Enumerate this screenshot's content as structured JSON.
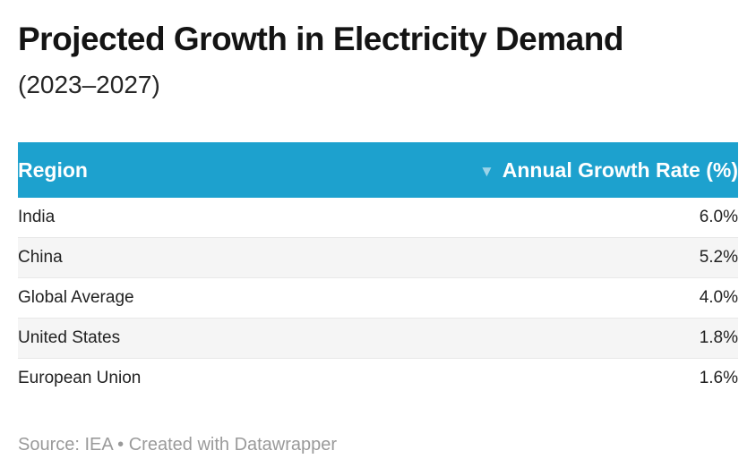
{
  "header": {
    "title": "Projected Growth in Electricity Demand",
    "subtitle": "(2023–2027)"
  },
  "table": {
    "columns": {
      "region_label": "Region",
      "value_label": "Annual Growth Rate (%)"
    },
    "sort_icon": "▼",
    "sort_state": "descending",
    "rows": [
      {
        "region": "India",
        "value": "6.0%"
      },
      {
        "region": "China",
        "value": "5.2%"
      },
      {
        "region": "Global Average",
        "value": "4.0%"
      },
      {
        "region": "United States",
        "value": "1.8%"
      },
      {
        "region": "European Union",
        "value": "1.6%"
      }
    ]
  },
  "footer": {
    "text": "Source: IEA • Created with Datawrapper"
  },
  "colors": {
    "header_bg": "#1da1ce",
    "header_text": "#ffffff",
    "row_stripe": "#f5f5f5",
    "row_border": "#e8e8e8",
    "sort_icon": "#9bd3e8",
    "title_text": "#141414",
    "body_text": "#222222",
    "footer_text": "#9a9a9a"
  },
  "chart_data": {
    "type": "table",
    "title": "Projected Growth in Electricity Demand",
    "subtitle": "(2023–2027)",
    "columns": [
      "Region",
      "Annual Growth Rate (%)"
    ],
    "categories": [
      "India",
      "China",
      "Global Average",
      "United States",
      "European Union"
    ],
    "values": [
      6.0,
      5.2,
      4.0,
      1.8,
      1.6
    ],
    "sort": "descending by Annual Growth Rate (%)",
    "source": "IEA"
  }
}
